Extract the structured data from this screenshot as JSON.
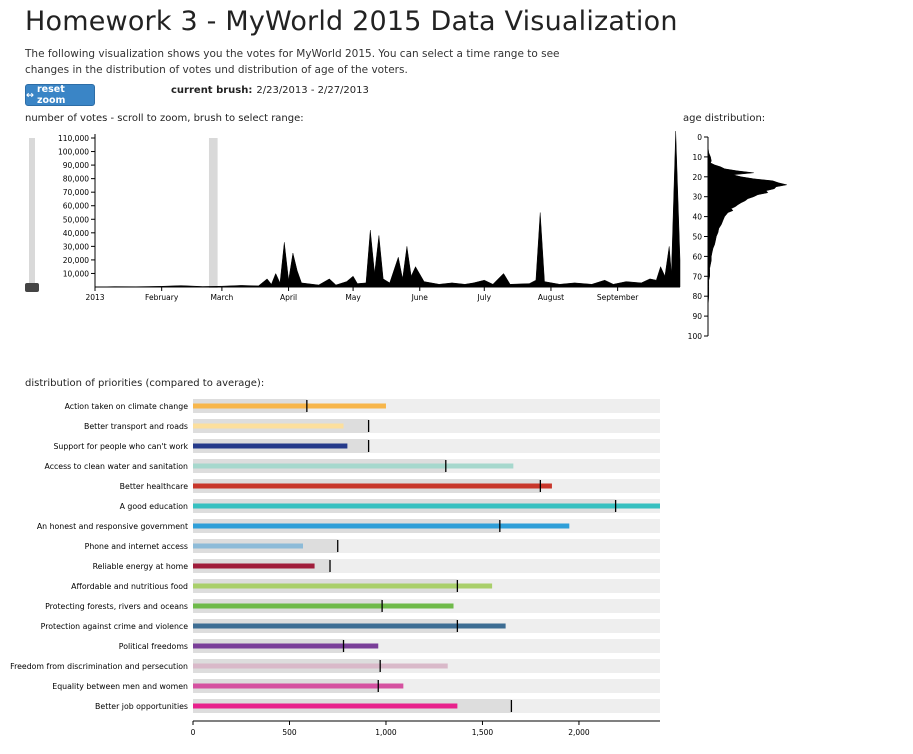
{
  "page": {
    "title": "Homework 3 - MyWorld 2015 Data Visualization",
    "description": "The following visualization shows you the votes for MyWorld 2015. You can select a time range to see changes in the distribution of votes und distribution of age of the voters.",
    "reset_label": "reset zoom",
    "brush_label": "current brush:",
    "brush_value": "2/23/2013 - 2/27/2013",
    "votes_heading": "number of votes - scroll to zoom, brush to select range:",
    "age_heading": "age distribution:",
    "priorities_heading": "distribution of priorities (compared to average):"
  },
  "colors": {
    "accent": "#3a85c6",
    "area": "#000000",
    "track": "#eeeeee",
    "avg_bg": "#dddddd",
    "brush": "#d9d9d9"
  },
  "chart_data": [
    {
      "type": "area",
      "title": "number of votes - scroll to zoom, brush to select range:",
      "x_ticks": [
        "2013",
        "February",
        "March",
        "April",
        "May",
        "June",
        "July",
        "August",
        "September"
      ],
      "y_ticks": [
        "10,000",
        "20,000",
        "30,000",
        "40,000",
        "50,000",
        "60,000",
        "70,000",
        "80,000",
        "90,000",
        "100,000",
        "110,000"
      ],
      "ylim": [
        0,
        110000
      ],
      "x_range": [
        "2013-01-01",
        "2013-09-30"
      ],
      "brush_range": [
        "2013-02-23",
        "2013-02-27"
      ],
      "series": [
        {
          "points": [
            [
              "2013-01-01",
              0
            ],
            [
              "2013-01-10",
              300
            ],
            [
              "2013-01-20",
              200
            ],
            [
              "2013-02-01",
              500
            ],
            [
              "2013-02-10",
              1000
            ],
            [
              "2013-02-20",
              400
            ],
            [
              "2013-03-01",
              600
            ],
            [
              "2013-03-10",
              1200
            ],
            [
              "2013-03-18",
              800
            ],
            [
              "2013-03-22",
              6000
            ],
            [
              "2013-03-24",
              2000
            ],
            [
              "2013-03-26",
              10000
            ],
            [
              "2013-03-28",
              3000
            ],
            [
              "2013-03-30",
              33000
            ],
            [
              "2013-04-01",
              5000
            ],
            [
              "2013-04-03",
              25000
            ],
            [
              "2013-04-05",
              12000
            ],
            [
              "2013-04-07",
              3000
            ],
            [
              "2013-04-15",
              1500
            ],
            [
              "2013-04-20",
              6000
            ],
            [
              "2013-04-23",
              1500
            ],
            [
              "2013-04-28",
              4000
            ],
            [
              "2013-05-01",
              8000
            ],
            [
              "2013-05-03",
              2500
            ],
            [
              "2013-05-07",
              3000
            ],
            [
              "2013-05-09",
              42000
            ],
            [
              "2013-05-11",
              10000
            ],
            [
              "2013-05-13",
              38000
            ],
            [
              "2013-05-15",
              6000
            ],
            [
              "2013-05-18",
              3000
            ],
            [
              "2013-05-22",
              22000
            ],
            [
              "2013-05-24",
              6000
            ],
            [
              "2013-05-26",
              30000
            ],
            [
              "2013-05-28",
              8000
            ],
            [
              "2013-05-30",
              15000
            ],
            [
              "2013-06-03",
              4000
            ],
            [
              "2013-06-10",
              2000
            ],
            [
              "2013-06-16",
              3000
            ],
            [
              "2013-06-22",
              2000
            ],
            [
              "2013-06-26",
              3000
            ],
            [
              "2013-07-01",
              5000
            ],
            [
              "2013-07-05",
              2000
            ],
            [
              "2013-07-10",
              10000
            ],
            [
              "2013-07-13",
              2000
            ],
            [
              "2013-07-22",
              2500
            ],
            [
              "2013-07-25",
              5000
            ],
            [
              "2013-07-27",
              55000
            ],
            [
              "2013-07-29",
              4000
            ],
            [
              "2013-08-05",
              2000
            ],
            [
              "2013-08-12",
              3000
            ],
            [
              "2013-08-20",
              2000
            ],
            [
              "2013-08-26",
              5000
            ],
            [
              "2013-08-30",
              2000
            ],
            [
              "2013-09-05",
              4000
            ],
            [
              "2013-09-12",
              3000
            ],
            [
              "2013-09-16",
              6000
            ],
            [
              "2013-09-19",
              5000
            ],
            [
              "2013-09-21",
              15000
            ],
            [
              "2013-09-23",
              8000
            ],
            [
              "2013-09-25",
              30000
            ],
            [
              "2013-09-26",
              10000
            ],
            [
              "2013-09-28",
              115000
            ],
            [
              "2013-09-30",
              20000
            ]
          ]
        }
      ]
    },
    {
      "type": "area",
      "title": "age distribution:",
      "y_ticks": [
        "0",
        "10",
        "20",
        "30",
        "40",
        "50",
        "60",
        "70",
        "80",
        "90",
        "100"
      ],
      "ylim": [
        0,
        100
      ],
      "series": [
        {
          "points": [
            [
              0,
              0
            ],
            [
              5,
              0
            ],
            [
              8,
              1
            ],
            [
              10,
              3
            ],
            [
              12,
              4
            ],
            [
              13,
              3
            ],
            [
              14,
              8
            ],
            [
              15,
              15
            ],
            [
              16,
              20
            ],
            [
              17,
              35
            ],
            [
              18,
              55
            ],
            [
              19,
              30
            ],
            [
              20,
              40
            ],
            [
              21,
              55
            ],
            [
              22,
              78
            ],
            [
              23,
              85
            ],
            [
              24,
              95
            ],
            [
              25,
              82
            ],
            [
              26,
              80
            ],
            [
              27,
              70
            ],
            [
              28,
              72
            ],
            [
              29,
              60
            ],
            [
              30,
              55
            ],
            [
              31,
              48
            ],
            [
              32,
              45
            ],
            [
              33,
              40
            ],
            [
              34,
              36
            ],
            [
              35,
              33
            ],
            [
              36,
              28
            ],
            [
              37,
              30
            ],
            [
              38,
              24
            ],
            [
              39,
              22
            ],
            [
              40,
              20
            ],
            [
              42,
              18
            ],
            [
              44,
              16
            ],
            [
              46,
              13
            ],
            [
              48,
              12
            ],
            [
              50,
              10
            ],
            [
              52,
              9
            ],
            [
              54,
              8
            ],
            [
              56,
              6
            ],
            [
              58,
              5
            ],
            [
              60,
              4
            ],
            [
              62,
              4
            ],
            [
              64,
              3
            ],
            [
              66,
              2
            ],
            [
              68,
              2
            ],
            [
              70,
              2
            ],
            [
              72,
              1
            ],
            [
              75,
              1
            ],
            [
              80,
              1
            ],
            [
              85,
              0
            ],
            [
              100,
              0
            ]
          ]
        }
      ]
    },
    {
      "type": "bar",
      "title": "distribution of priorities (compared to average):",
      "categories": [
        "Action taken on climate change",
        "Better transport and roads",
        "Support for people who can't work",
        "Access to clean water and sanitation",
        "Better healthcare",
        "A good education",
        "An honest and responsive government",
        "Phone and internet access",
        "Reliable energy at home",
        "Affordable and nutritious food",
        "Protecting forests, rivers and oceans",
        "Protection against crime and violence",
        "Political freedoms",
        "Freedom from discrimination and persecution",
        "Equality between men and women",
        "Better job opportunities"
      ],
      "values": [
        1000,
        780,
        800,
        1660,
        1860,
        2420,
        1950,
        570,
        630,
        1550,
        1350,
        1620,
        960,
        1320,
        1090,
        1370
      ],
      "averages": [
        590,
        910,
        910,
        1310,
        1800,
        2190,
        1590,
        750,
        710,
        1370,
        980,
        1370,
        780,
        970,
        960,
        1650
      ],
      "colors": [
        "#f7b64b",
        "#fcdf9d",
        "#253a8a",
        "#a6d8cd",
        "#c8372b",
        "#37c0c0",
        "#2f9fd8",
        "#8dbbd8",
        "#a01d3b",
        "#a9cf6a",
        "#6fba4a",
        "#3d6d93",
        "#7a3f99",
        "#d9b9c9",
        "#d551a0",
        "#e8228c"
      ],
      "x_ticks": [
        "0",
        "500",
        "1,000",
        "1,500",
        "2,000"
      ],
      "xlim": [
        0,
        2420
      ]
    }
  ]
}
